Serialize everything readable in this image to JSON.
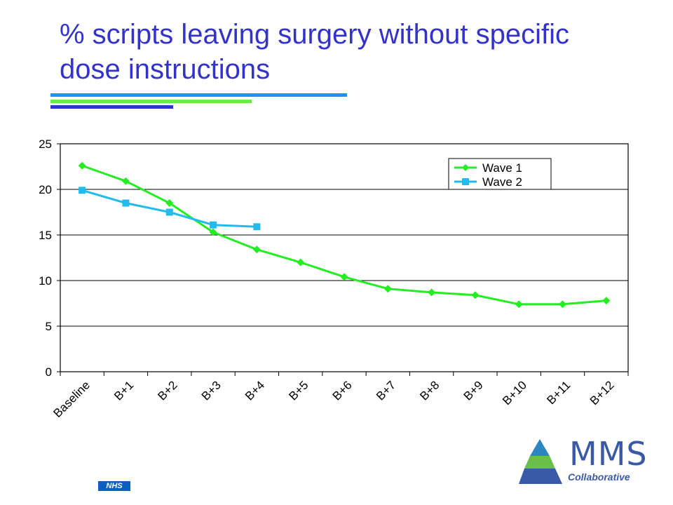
{
  "slide": {
    "title": "% scripts leaving surgery without specific dose instructions",
    "accent_colors": [
      "#1e90ff",
      "#66ee44",
      "#3333cc"
    ]
  },
  "chart_data": {
    "type": "line",
    "title": "",
    "xlabel": "",
    "ylabel": "",
    "categories": [
      "Baseline",
      "B+1",
      "B+2",
      "B+3",
      "B+4",
      "B+5",
      "B+6",
      "B+7",
      "B+8",
      "B+9",
      "B+10",
      "B+11",
      "B+12"
    ],
    "ylim": [
      0,
      25
    ],
    "yticks": [
      0,
      5,
      10,
      15,
      20,
      25
    ],
    "grid": "horizontal",
    "legend_position": "top-right",
    "series": [
      {
        "name": "Wave 1",
        "color": "#22ee22",
        "marker": "diamond",
        "values": [
          22.6,
          20.9,
          18.5,
          15.3,
          13.4,
          12.0,
          10.4,
          9.1,
          8.7,
          8.4,
          7.4,
          7.4,
          7.8
        ]
      },
      {
        "name": "Wave 2",
        "color": "#22bbee",
        "marker": "square",
        "values": [
          19.9,
          18.5,
          17.5,
          16.1,
          15.9,
          null,
          null,
          null,
          null,
          null,
          null,
          null,
          null
        ]
      }
    ]
  },
  "footer": {
    "nhs_label": "NHS",
    "logo_title": "MMS",
    "logo_subtitle": "Collaborative",
    "logo_colors": [
      "#2e86c1",
      "#6ac04a",
      "#3a5aa8"
    ]
  }
}
